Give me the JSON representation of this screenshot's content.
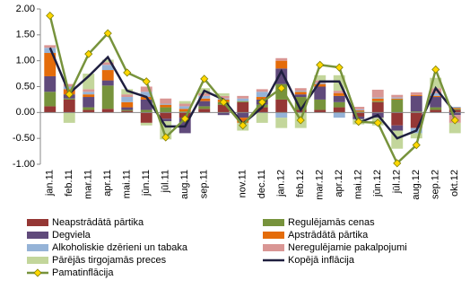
{
  "chart_data": {
    "type": "bar",
    "categories": [
      "jan.11",
      "feb.11",
      "mar.11",
      "apr.11",
      "mai.11",
      "jūn.11",
      "jūl.11",
      "aug.11",
      "sep.11",
      null,
      "nov.11",
      "dec.11",
      "jan.12",
      "feb.12",
      "mar.12",
      "apr.12",
      "mai.12",
      "jūn.12",
      "jūl.12",
      "aug.12",
      "sep.12",
      "okt.12"
    ],
    "ylim": [
      -1,
      2
    ],
    "yticks": [
      {
        "value": -1,
        "label": "-1.00"
      },
      {
        "value": -0.5,
        "label": "-0.50"
      },
      {
        "value": 0,
        "label": "0.00"
      },
      {
        "value": 0.5,
        "label": "0.50"
      },
      {
        "value": 1,
        "label": "1.00"
      },
      {
        "value": 1.5,
        "label": "1.50"
      },
      {
        "value": 2,
        "label": "2.00"
      }
    ],
    "grid": false,
    "series": [
      {
        "name": "Neapstrādātā pārtika",
        "kind": "bar",
        "color": "#953735",
        "values": [
          0.12,
          0.25,
          0.05,
          0.07,
          0.03,
          -0.2,
          -0.12,
          -0.1,
          0.07,
          0.15,
          0.2,
          0.1,
          0.25,
          0.05,
          0.05,
          0.1,
          -0.08,
          0.2,
          -0.25,
          -0.3,
          0.05,
          0.05
        ]
      },
      {
        "name": "Regulējamās cenas",
        "kind": "bar",
        "color": "#77933c",
        "values": [
          0.28,
          0.02,
          0.05,
          0.45,
          0.02,
          0.05,
          0.1,
          0.02,
          0.05,
          0.05,
          0.02,
          0.05,
          0.3,
          0.25,
          0.2,
          0.1,
          0.02,
          0.02,
          0.25,
          0.02,
          0.05,
          0.02
        ]
      },
      {
        "name": "Degviela",
        "kind": "bar",
        "color": "#604a7b",
        "values": [
          0.3,
          0.08,
          0.2,
          0.1,
          0.05,
          0.2,
          -0.05,
          -0.3,
          0.1,
          -0.05,
          -0.1,
          0.1,
          0.3,
          0.05,
          0.25,
          0.12,
          -0.05,
          -0.1,
          -0.1,
          0.3,
          0.2,
          -0.05
        ]
      },
      {
        "name": "Apstrādātā pārtika",
        "kind": "bar",
        "color": "#e46c0a",
        "values": [
          0.45,
          0.1,
          0.05,
          0.2,
          0.1,
          0.05,
          0.05,
          0.05,
          0.05,
          0.05,
          -0.1,
          0.05,
          0.15,
          0.05,
          0.05,
          0.05,
          0.02,
          0.05,
          0.02,
          0.02,
          0.02,
          0.02
        ]
      },
      {
        "name": "Alkoholiskie dzērieni un tabaka",
        "kind": "bar",
        "color": "#95b3d7",
        "values": [
          0.1,
          0.05,
          0.05,
          0.1,
          0.1,
          0.1,
          0.02,
          0.05,
          0.05,
          0.02,
          0.05,
          0.1,
          -0.1,
          0.02,
          0.02,
          -0.1,
          0.02,
          0.02,
          0.02,
          -0.1,
          0.05,
          0.02
        ]
      },
      {
        "name": "Neregulējamie pakalpojumi",
        "kind": "bar",
        "color": "#d99694",
        "values": [
          0.05,
          0.05,
          0.05,
          0.05,
          0.05,
          0.1,
          0.1,
          0.05,
          0.05,
          0.05,
          0.05,
          0.05,
          0.05,
          0.05,
          0.05,
          0.05,
          0.05,
          0.15,
          0.05,
          0.05,
          0.1,
          -0.15
        ]
      },
      {
        "name": "Pārējās tirgojamās preces",
        "kind": "bar",
        "color": "#c3d69b",
        "values": [
          0,
          -0.2,
          0.3,
          0.05,
          0.1,
          -0.05,
          -0.35,
          0.05,
          0.1,
          0.05,
          -0.15,
          -0.2,
          -0.2,
          -0.3,
          0.1,
          0.3,
          -0.1,
          -0.15,
          -0.35,
          -0.1,
          0.2,
          -0.2
        ]
      },
      {
        "name": "Kopējā inflācija",
        "kind": "line",
        "color": "#1f1f3f",
        "values": [
          1.25,
          0.37,
          0.7,
          1.07,
          0.42,
          0.3,
          -0.27,
          -0.27,
          0.42,
          0.25,
          -0.22,
          0.1,
          0.8,
          0.05,
          0.6,
          0.6,
          -0.2,
          -0.05,
          -0.5,
          -0.35,
          0.47,
          0
        ]
      },
      {
        "name": "Pamatinflācija",
        "kind": "line",
        "color": "#77933c",
        "marker": "diamond",
        "marker_color": "#ffd700",
        "values": [
          1.87,
          0.35,
          1.13,
          1.53,
          0.77,
          0.6,
          -0.48,
          -0.12,
          0.65,
          0.2,
          -0.25,
          0.2,
          0.47,
          -0.15,
          0.92,
          0.87,
          -0.18,
          -0.2,
          -0.98,
          -0.63,
          0.83,
          -0.15
        ]
      }
    ]
  }
}
